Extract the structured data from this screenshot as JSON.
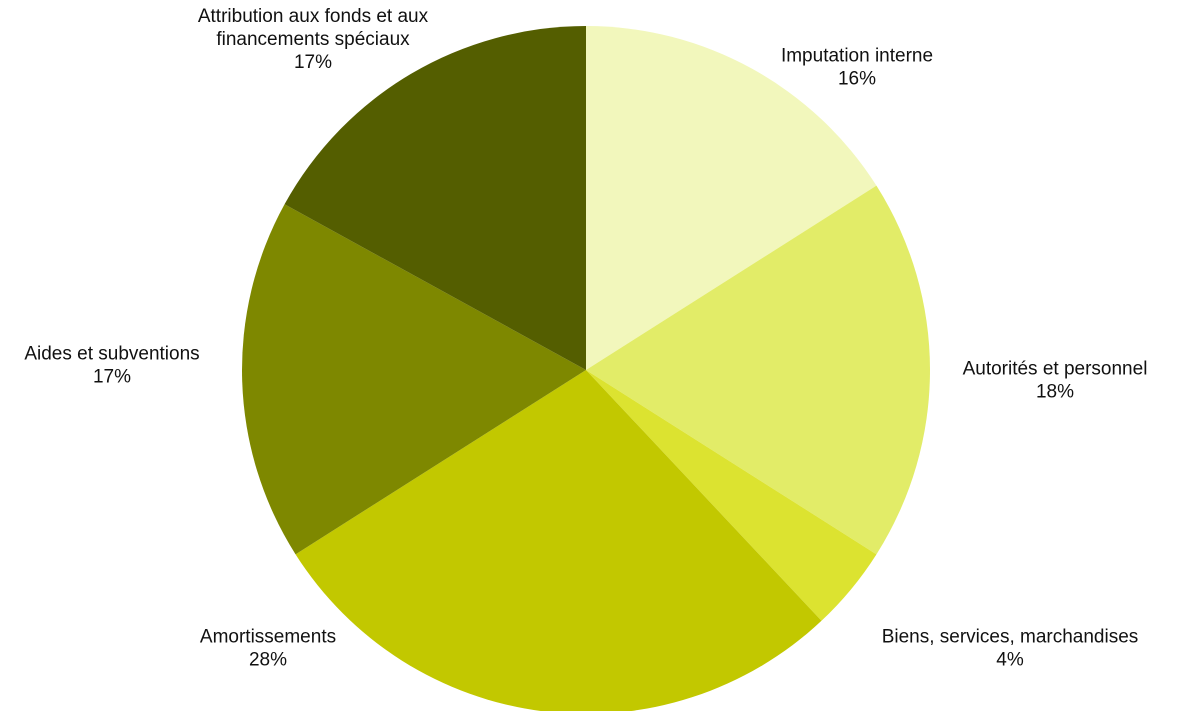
{
  "chart_data": {
    "type": "pie",
    "title": "",
    "start_angle_deg": 0,
    "direction": "clockwise",
    "slices": [
      {
        "label": "Imputation interne",
        "label_lines": [
          "Imputation interne"
        ],
        "value": 16,
        "value_label": "16%",
        "color": "#F2F7BC"
      },
      {
        "label": "Autorités et personnel",
        "label_lines": [
          "Autorités et personnel"
        ],
        "value": 18,
        "value_label": "18%",
        "color": "#E2EC68"
      },
      {
        "label": "Biens, services, marchandises",
        "label_lines": [
          "Biens, services, marchandises"
        ],
        "value": 4,
        "value_label": "4%",
        "color": "#DCE330"
      },
      {
        "label": "Amortissements",
        "label_lines": [
          "Amortissements"
        ],
        "value": 28,
        "value_label": "28%",
        "color": "#C2C800"
      },
      {
        "label": "Aides et subventions",
        "label_lines": [
          "Aides et subventions"
        ],
        "value": 17,
        "value_label": "17%",
        "color": "#7E8800"
      },
      {
        "label": "Attribution aux fonds et aux financements spéciaux",
        "label_lines": [
          "Attribution aux fonds et aux",
          "financements spéciaux"
        ],
        "value": 17,
        "value_label": "17%",
        "color": "#545E00"
      }
    ]
  }
}
